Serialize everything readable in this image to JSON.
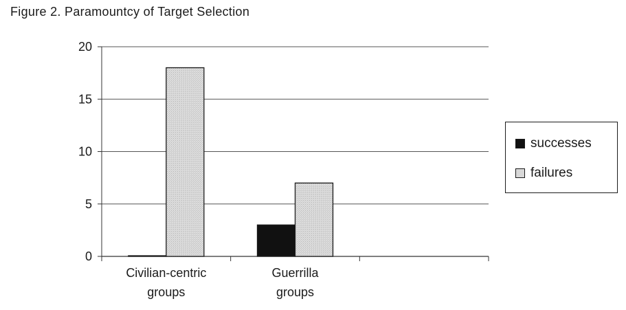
{
  "figure_title": "Figure 2.  Paramountcy of Target Selection",
  "chart_data": {
    "type": "bar",
    "categories": [
      "Civilian-centric groups",
      "Guerrilla groups"
    ],
    "category_lines": [
      [
        "Civilian-centric",
        "groups"
      ],
      [
        "Guerrilla",
        "groups"
      ]
    ],
    "series": [
      {
        "name": "successes",
        "values": [
          0,
          3
        ],
        "color": "#111111"
      },
      {
        "name": "failures",
        "values": [
          18,
          7
        ],
        "color": "#d8d8d8"
      }
    ],
    "yticks": [
      0,
      5,
      10,
      15,
      20
    ],
    "ylim": [
      0,
      20
    ],
    "grid": true,
    "legend_position": "right"
  }
}
